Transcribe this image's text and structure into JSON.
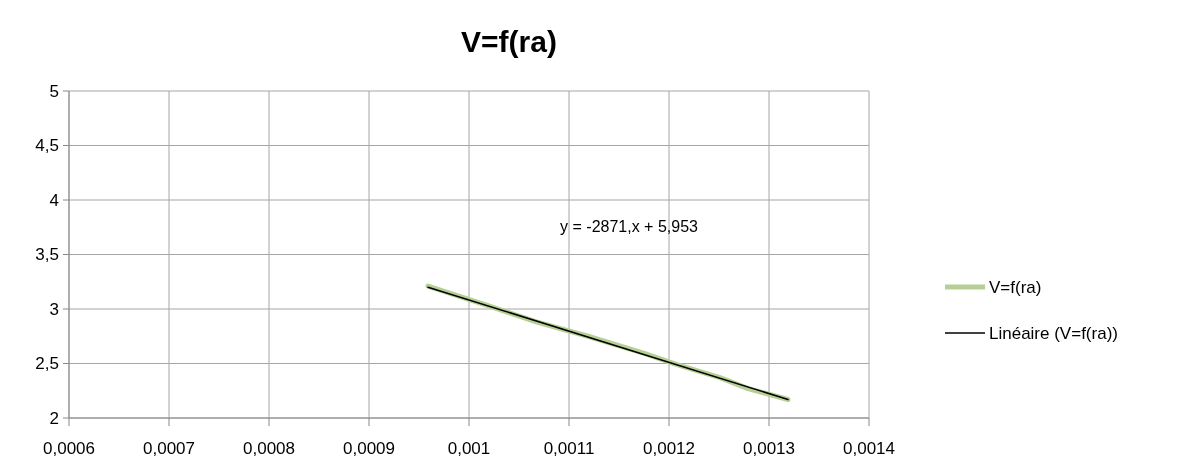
{
  "chart_data": {
    "type": "line",
    "title": "V=f(ra)",
    "series": [
      {
        "name": "V=f(ra)",
        "color": "#b5cf94",
        "x": [
          0.000959,
          0.001019,
          0.001068,
          0.001119,
          0.001176,
          0.001208,
          0.001251,
          0.001279,
          0.001319
        ],
        "values": [
          3.21,
          3.03,
          2.88,
          2.75,
          2.59,
          2.49,
          2.37,
          2.27,
          2.17
        ]
      },
      {
        "name": "Linéaire (V=f(ra))",
        "color": "#000000",
        "type": "line",
        "x": [
          0.000959,
          0.001319
        ],
        "values": [
          3.2,
          2.17
        ]
      }
    ],
    "annotations": [
      "y = -2871,x + 5,953"
    ],
    "xlim": [
      0.0006,
      0.0014
    ],
    "xticks": [
      {
        "value": 0.0006,
        "label": "0,0006"
      },
      {
        "value": 0.0007,
        "label": "0,0007"
      },
      {
        "value": 0.0008,
        "label": "0,0008"
      },
      {
        "value": 0.0009,
        "label": "0,0009"
      },
      {
        "value": 0.001,
        "label": "0,001"
      },
      {
        "value": 0.0011,
        "label": "0,0011"
      },
      {
        "value": 0.0012,
        "label": "0,0012"
      },
      {
        "value": 0.0013,
        "label": "0,0013"
      },
      {
        "value": 0.0014,
        "label": "0,0014"
      }
    ],
    "ylim": [
      2,
      5
    ],
    "yticks": [
      2,
      {
        "value": 2.5,
        "label": "2,5"
      },
      3,
      {
        "value": 3.5,
        "label": "3,5"
      },
      4,
      {
        "value": 4.5,
        "label": "4,5"
      },
      5
    ],
    "grid": true,
    "legend": "right"
  }
}
